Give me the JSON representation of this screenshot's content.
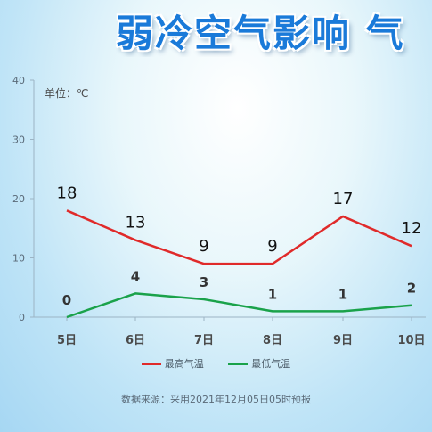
{
  "chart_data": {
    "type": "line",
    "title": "弱冷空气影响 气",
    "unit_label": "单位：℃",
    "categories": [
      "5日",
      "6日",
      "7日",
      "8日",
      "9日",
      "10日"
    ],
    "series": [
      {
        "name": "最高气温",
        "values": [
          18,
          13,
          9,
          9,
          17,
          12
        ],
        "color": "#e02a2a"
      },
      {
        "name": "最低气温",
        "values": [
          0,
          4,
          3,
          1,
          1,
          2
        ],
        "color": "#1aa24a"
      }
    ],
    "ylim": [
      0,
      40
    ],
    "yticks": [
      "0",
      "10",
      "20",
      "30",
      "40"
    ],
    "grid": false,
    "legend": "bottom"
  },
  "source_text": "数据来源：采用2021年12月05日05时预报"
}
